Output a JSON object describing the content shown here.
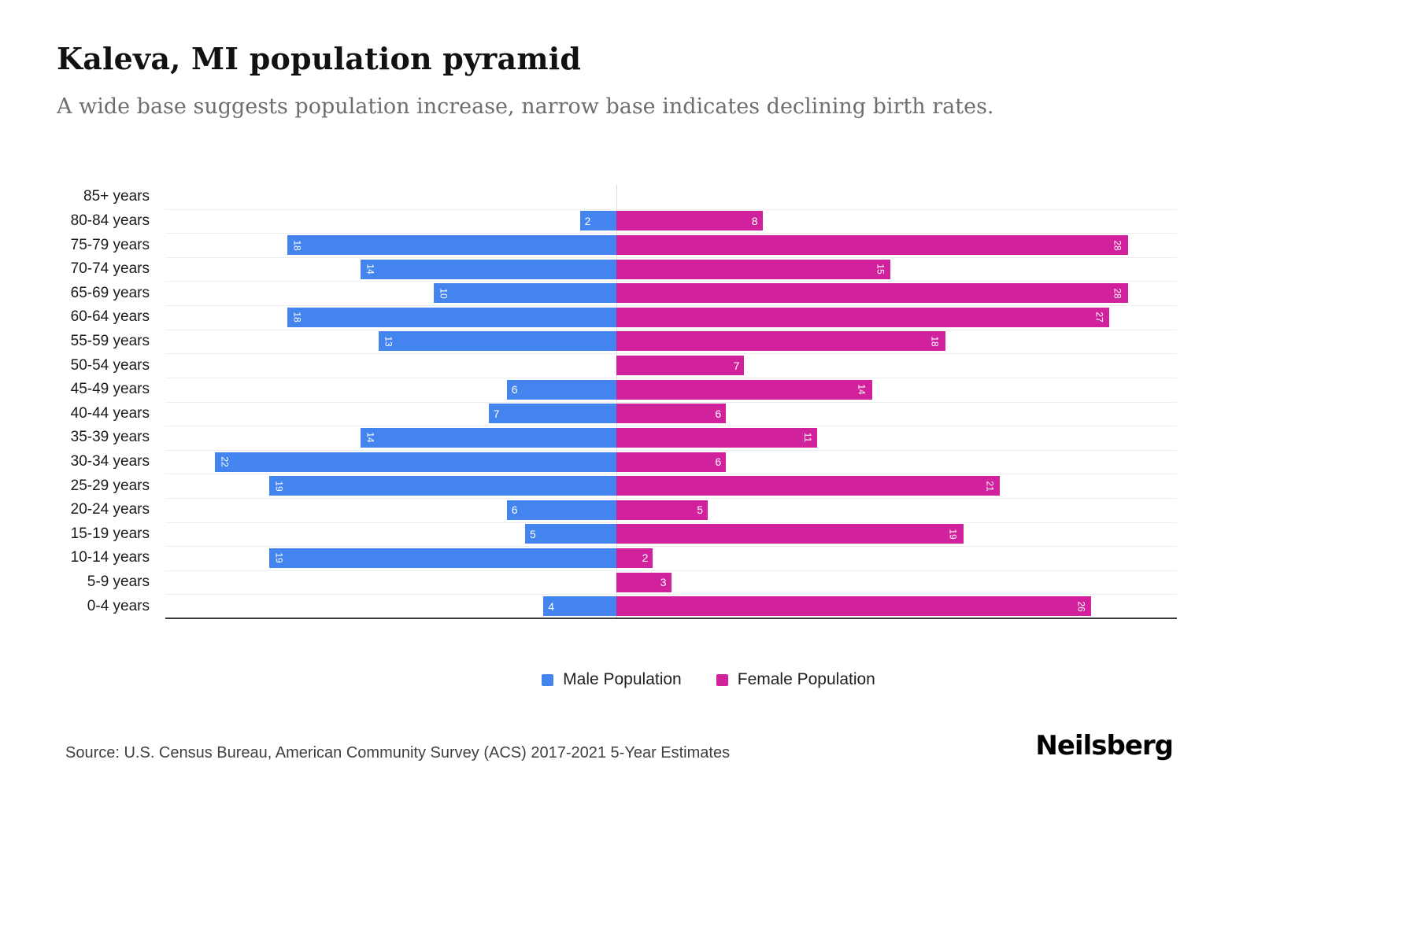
{
  "chart_data": {
    "type": "bar",
    "variant": "population-pyramid",
    "title": "Kaleva, MI population pyramid",
    "subtitle": "A wide base suggests population increase, narrow base indicates declining birth rates.",
    "categories": [
      "85+ years",
      "80-84 years",
      "75-79 years",
      "70-74 years",
      "65-69 years",
      "60-64 years",
      "55-59 years",
      "50-54 years",
      "45-49 years",
      "40-44 years",
      "35-39 years",
      "30-34 years",
      "25-29 years",
      "20-24 years",
      "15-19 years",
      "10-14 years",
      "5-9 years",
      "0-4 years"
    ],
    "series": [
      {
        "name": "Male Population",
        "side": "left",
        "color": "#4484ee",
        "values": [
          0,
          2,
          18,
          14,
          10,
          18,
          13,
          0,
          6,
          7,
          14,
          22,
          19,
          6,
          5,
          19,
          0,
          4
        ]
      },
      {
        "name": "Female Population",
        "side": "right",
        "color": "#d1219c",
        "values": [
          0,
          8,
          28,
          15,
          28,
          27,
          18,
          7,
          14,
          6,
          11,
          6,
          21,
          5,
          19,
          2,
          3,
          26
        ]
      }
    ],
    "legend_position": "bottom-center",
    "grid": "horizontal"
  },
  "footer": {
    "source": "Source: U.S. Census Bureau, American Community Survey (ACS) 2017-2021 5-Year Estimates",
    "brand": "Neilsberg"
  }
}
